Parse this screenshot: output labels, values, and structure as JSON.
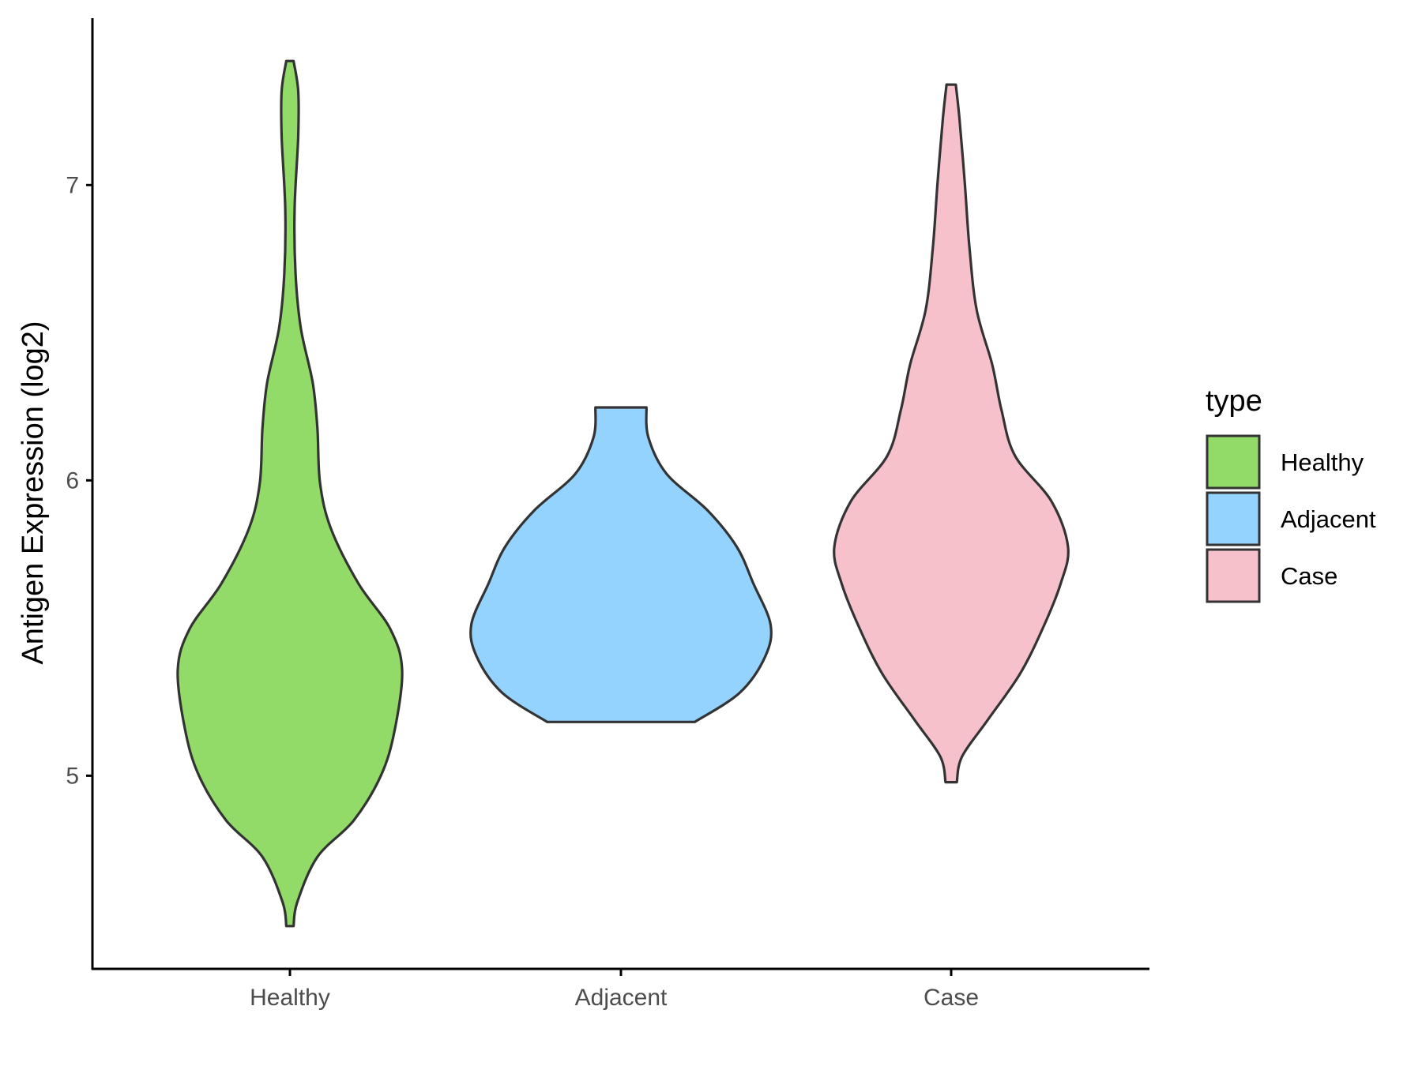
{
  "chart_data": {
    "type": "violin",
    "title": "",
    "xlabel": "",
    "ylabel": "Antigen Expression (log2)",
    "ylim": [
      4.346,
      7.565
    ],
    "yticks": [
      5,
      6,
      7
    ],
    "ytick_labels": [
      "5",
      "6",
      "7"
    ],
    "categories": [
      "Healthy",
      "Adjacent",
      "Case"
    ],
    "grid": false,
    "legend": {
      "title": "type",
      "placement": "right",
      "entries": [
        "Healthy",
        "Adjacent",
        "Case"
      ]
    },
    "series": [
      {
        "name": "Healthy",
        "color": "#93DB69",
        "profile_note": "pairs of [value, relative half-width]",
        "profile": [
          [
            4.491,
            0.011
          ],
          [
            4.571,
            0.022
          ],
          [
            4.725,
            0.083
          ],
          [
            4.849,
            0.193
          ],
          [
            5.003,
            0.276
          ],
          [
            5.157,
            0.317
          ],
          [
            5.358,
            0.339
          ],
          [
            5.497,
            0.303
          ],
          [
            5.651,
            0.207
          ],
          [
            5.836,
            0.124
          ],
          [
            5.991,
            0.091
          ],
          [
            6.176,
            0.083
          ],
          [
            6.33,
            0.069
          ],
          [
            6.515,
            0.033
          ],
          [
            6.701,
            0.017
          ],
          [
            6.917,
            0.014
          ],
          [
            7.164,
            0.025
          ],
          [
            7.318,
            0.025
          ],
          [
            7.42,
            0.011
          ]
        ]
      },
      {
        "name": "Adjacent",
        "color": "#94D3FE",
        "profile": [
          [
            5.182,
            0.223
          ],
          [
            5.281,
            0.359
          ],
          [
            5.404,
            0.436
          ],
          [
            5.512,
            0.452
          ],
          [
            5.651,
            0.4
          ],
          [
            5.775,
            0.35
          ],
          [
            5.898,
            0.262
          ],
          [
            6.022,
            0.138
          ],
          [
            6.145,
            0.083
          ],
          [
            6.247,
            0.077
          ]
        ]
      },
      {
        "name": "Case",
        "color": "#F7C1CC",
        "profile": [
          [
            4.978,
            0.017
          ],
          [
            5.065,
            0.033
          ],
          [
            5.188,
            0.11
          ],
          [
            5.343,
            0.207
          ],
          [
            5.497,
            0.276
          ],
          [
            5.651,
            0.331
          ],
          [
            5.775,
            0.353
          ],
          [
            5.929,
            0.303
          ],
          [
            6.083,
            0.193
          ],
          [
            6.238,
            0.152
          ],
          [
            6.392,
            0.124
          ],
          [
            6.577,
            0.077
          ],
          [
            6.793,
            0.055
          ],
          [
            7.009,
            0.041
          ],
          [
            7.225,
            0.025
          ],
          [
            7.34,
            0.014
          ]
        ]
      }
    ],
    "outline_color": "#333333"
  }
}
